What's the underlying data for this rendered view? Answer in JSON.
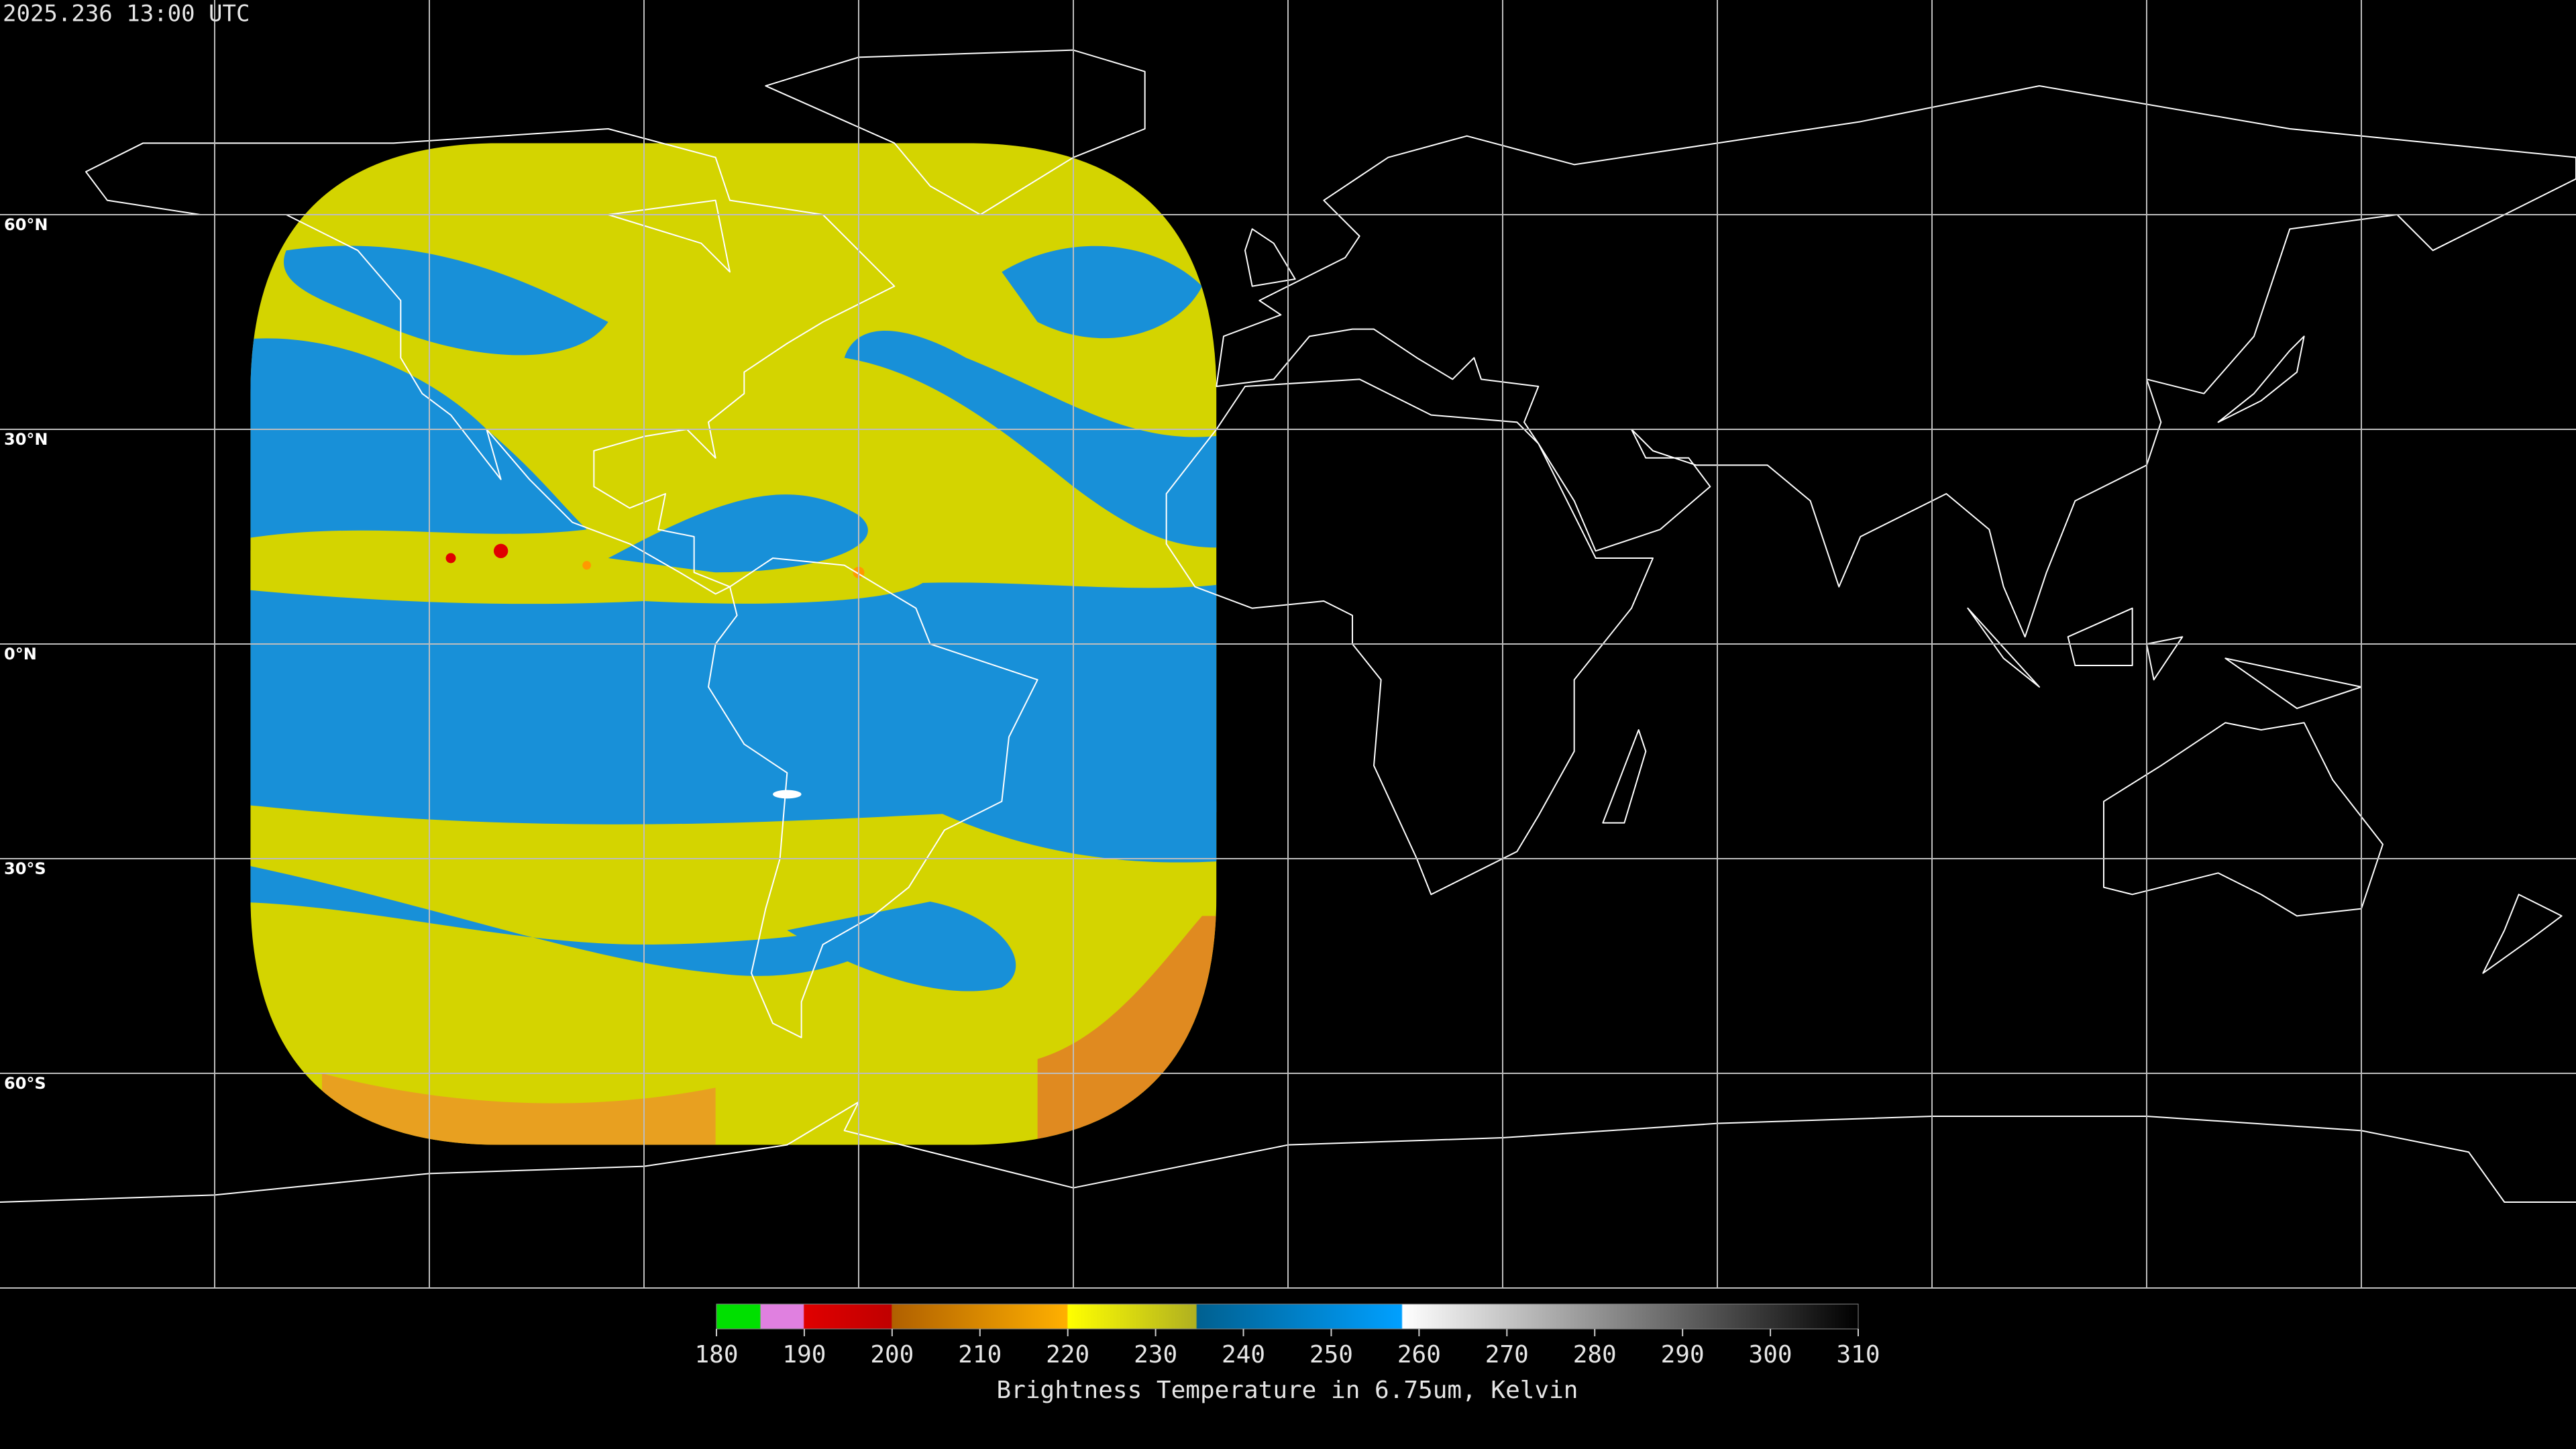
{
  "timestamp": "2025.236 13:00 UTC",
  "lat_labels": [
    "60°N",
    "30°N",
    "0°N",
    "30°S",
    "60°S"
  ],
  "colorbar": {
    "ticks": [
      180,
      190,
      200,
      210,
      220,
      230,
      240,
      250,
      260,
      270,
      280,
      290,
      300,
      310
    ],
    "title": "Brightness Temperature in 6.75um, Kelvin"
  }
}
